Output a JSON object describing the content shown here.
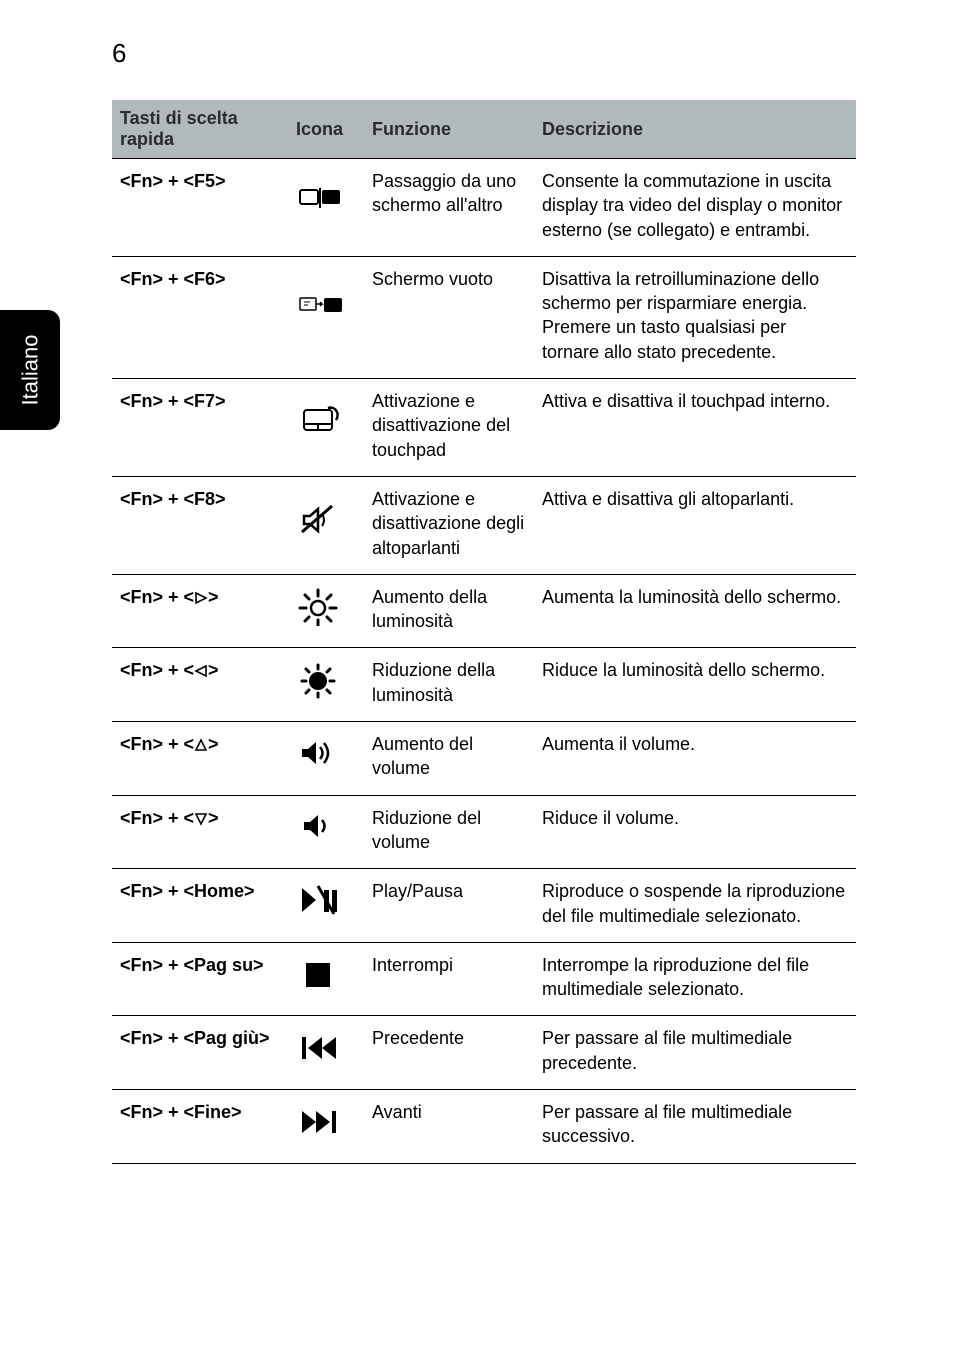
{
  "page_number": "6",
  "side_tab": "Italiano",
  "header": {
    "col1_line1": "Tasti di scelta",
    "col1_line2": "rapida",
    "col2": "Icona",
    "col3": "Funzione",
    "col4": "Descrizione"
  },
  "rows": [
    {
      "shortcut": "<Fn> + <F5>",
      "icon": "display-switch",
      "func": "Passaggio da uno schermo all'altro",
      "desc": "Consente la commutazione in uscita display tra video del display o monitor esterno (se collegato) e entrambi."
    },
    {
      "shortcut": "<Fn> + <F6>",
      "icon": "screen-off",
      "func": "Schermo vuoto",
      "desc": "Disattiva la retroilluminazione dello schermo per risparmiare energia. Premere un tasto qualsiasi per tornare allo stato precedente."
    },
    {
      "shortcut": "<Fn> + <F7>",
      "icon": "touchpad",
      "func": "Attivazione e disattivazione del touchpad",
      "desc": "Attiva e disattiva il touchpad interno."
    },
    {
      "shortcut": "<Fn> + <F8>",
      "icon": "speaker-mute",
      "func": "Attivazione e disattivazione degli altoparlanti",
      "desc": "Attiva e disattiva gli altoparlanti."
    },
    {
      "shortcut_html": "<Fn> + <▷>",
      "shortcut_pre": "<Fn> + <",
      "shortcut_post": ">",
      "tri": "right",
      "icon": "sun-bright",
      "func": "Aumento della luminosità",
      "desc": "Aumenta la luminosità dello schermo."
    },
    {
      "shortcut_pre": "<Fn> + <",
      "shortcut_post": ">",
      "tri": "left",
      "icon": "sun-dim",
      "func": "Riduzione della luminosità",
      "desc": "Riduce la luminosità dello schermo."
    },
    {
      "shortcut_pre": "<Fn> + <",
      "shortcut_post": ">",
      "tri": "up",
      "icon": "vol-up",
      "func": "Aumento del volume",
      "desc": "Aumenta il volume."
    },
    {
      "shortcut_pre": "<Fn> + <",
      "shortcut_post": ">",
      "tri": "down",
      "icon": "vol-down",
      "func": "Riduzione del volume",
      "desc": "Riduce il volume."
    },
    {
      "shortcut": "<Fn> + <Home>",
      "icon": "play-pause",
      "func": "Play/Pausa",
      "desc": "Riproduce o sospende la riproduzione del file multimediale selezionato."
    },
    {
      "shortcut": "<Fn> + <Pag su>",
      "icon": "stop",
      "func": "Interrompi",
      "desc": "Interrompe la riproduzione del file multimediale selezionato."
    },
    {
      "shortcut": "<Fn> + <Pag giù>",
      "icon": "prev",
      "func": "Precedente",
      "desc": "Per passare al file multimediale precedente."
    },
    {
      "shortcut": "<Fn> + <Fine>",
      "icon": "next",
      "func": "Avanti",
      "desc": "Per passare al file multimediale successivo."
    }
  ],
  "colors": {
    "header_bg": "#b0babc",
    "border": "#000000",
    "text": "#000000"
  }
}
